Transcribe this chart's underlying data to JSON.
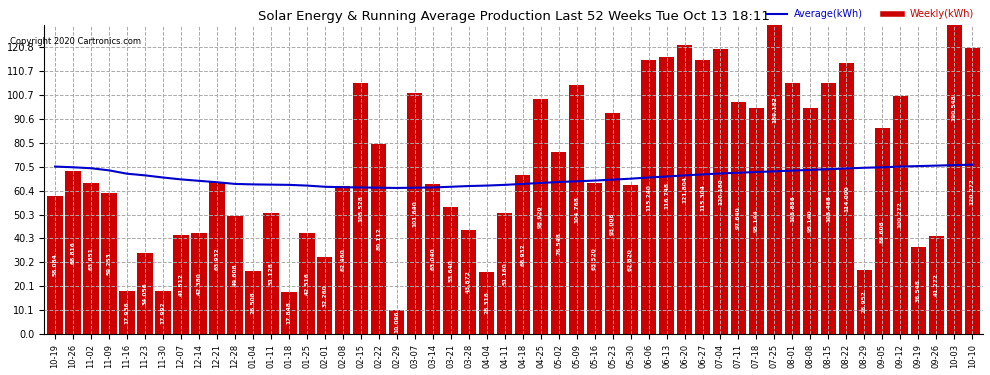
{
  "title": "Solar Energy & Running Average Production Last 52 Weeks Tue Oct 13 18:11",
  "copyright": "Copyright 2020 Cartronics.com",
  "legend_avg": "Average(kWh)",
  "legend_weekly": "Weekly(kWh)",
  "bar_color": "#cc0000",
  "avg_line_color": "#0000cc",
  "background_color": "#ffffff",
  "grid_color": "#aaaaaa",
  "ylim": [
    0.0,
    130.0
  ],
  "yticks": [
    0.0,
    10.1,
    20.1,
    30.2,
    40.3,
    50.3,
    60.4,
    70.5,
    80.5,
    90.6,
    100.7,
    110.7,
    120.8
  ],
  "categories": [
    "10-19",
    "10-26",
    "11-02",
    "11-09",
    "11-16",
    "11-23",
    "11-30",
    "12-07",
    "12-14",
    "12-21",
    "12-28",
    "01-04",
    "01-11",
    "01-18",
    "01-25",
    "02-01",
    "02-08",
    "02-15",
    "02-22",
    "02-29",
    "03-07",
    "03-14",
    "03-21",
    "03-28",
    "04-04",
    "04-11",
    "04-18",
    "04-25",
    "05-02",
    "05-09",
    "05-16",
    "05-23",
    "05-30",
    "06-06",
    "06-13",
    "06-20",
    "06-27",
    "07-04",
    "07-11",
    "07-18",
    "07-25",
    "08-01",
    "08-08",
    "08-15",
    "08-22",
    "08-29",
    "09-05",
    "09-12",
    "09-19",
    "09-26",
    "10-03",
    "10-10"
  ],
  "weekly_values": [
    58.084,
    68.816,
    63.651,
    59.253,
    17.936,
    34.056,
    17.992,
    41.512,
    42.38,
    63.932,
    49.608,
    26.508,
    51.128,
    17.848,
    42.516,
    32.26,
    62.46,
    105.528,
    80.112,
    10.096,
    101.64,
    63.04,
    53.64,
    43.872,
    26.316,
    51.16,
    66.932,
    98.92,
    76.548,
    104.768,
    63.52,
    93.008,
    62.82,
    115.24,
    116.748,
    121.804,
    115.304,
    120.18,
    97.64,
    95.144,
    189.182,
    105.856,
    95.14,
    105.468,
    114.0,
    26.952,
    86.608,
    100.272,
    36.548,
    41.272,
    190.548,
    120.272
  ],
  "avg_values": [
    70.5,
    70.2,
    69.8,
    68.9,
    67.5,
    66.8,
    65.9,
    65.1,
    64.5,
    63.9,
    63.2,
    63.0,
    62.9,
    62.8,
    62.5,
    62.0,
    61.8,
    61.7,
    61.6,
    61.5,
    61.6,
    61.7,
    62.0,
    62.3,
    62.5,
    62.8,
    63.2,
    63.6,
    64.0,
    64.3,
    64.6,
    65.0,
    65.4,
    65.9,
    66.3,
    66.8,
    67.2,
    67.6,
    67.9,
    68.2,
    68.5,
    68.8,
    69.1,
    69.4,
    69.7,
    70.0,
    70.2,
    70.5,
    70.7,
    70.9,
    71.1,
    71.3
  ]
}
